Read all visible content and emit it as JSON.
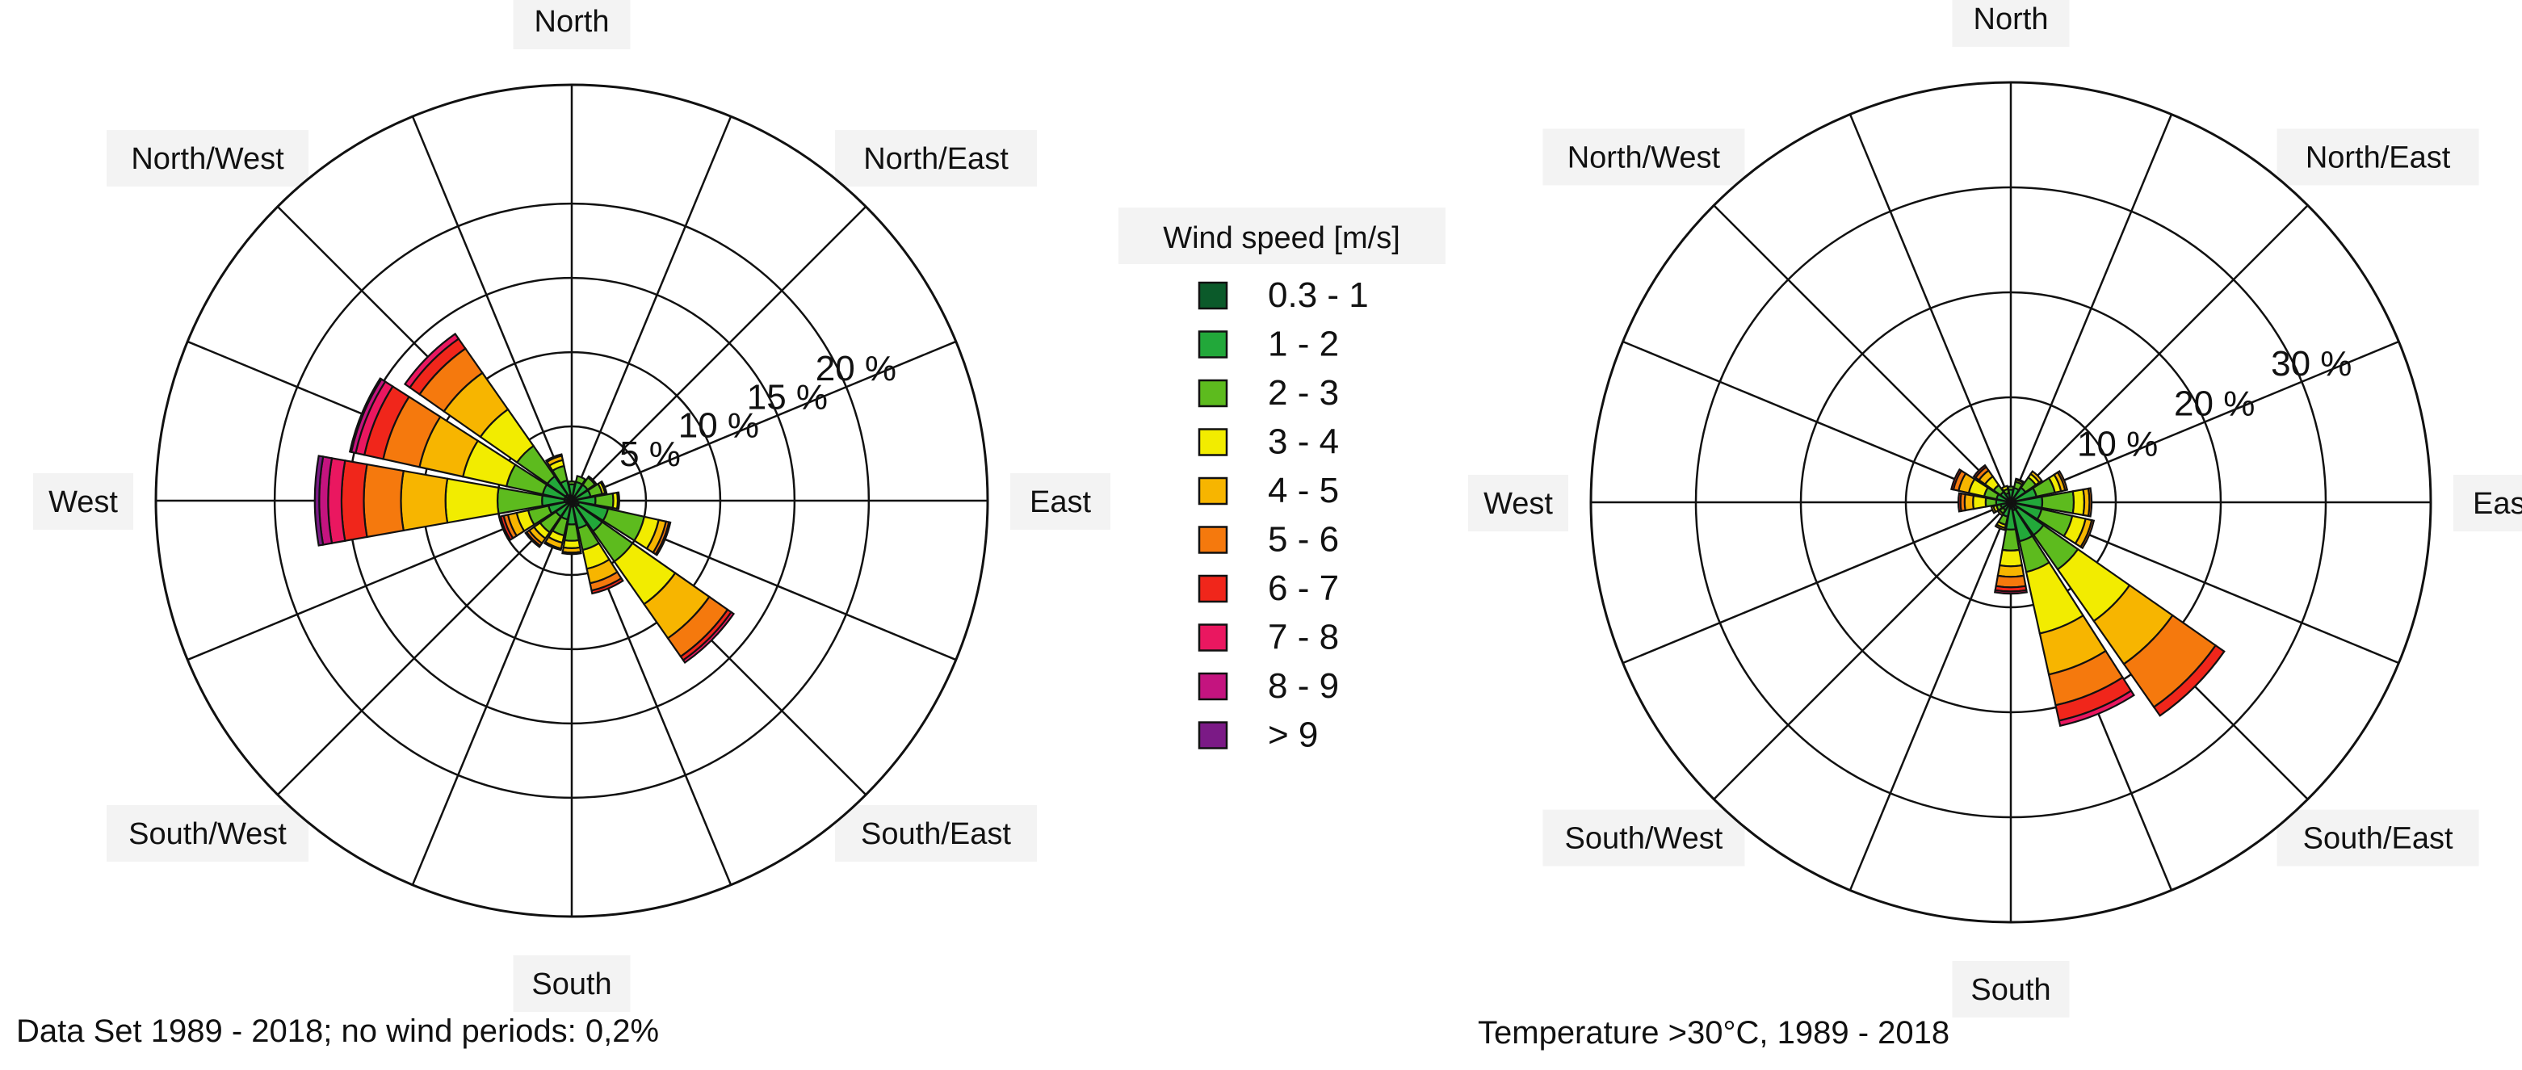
{
  "colors": {
    "0.3 - 1": "#0b5a2a",
    "1 - 2": "#22a83a",
    "2 - 3": "#5dbb1e",
    "3 - 4": "#f2ec00",
    "4 - 5": "#f7b500",
    "5 - 6": "#f5790d",
    "6 - 7": "#f0261b",
    "7 - 8": "#ea1760",
    "8 - 9": "#c4147f",
    "> 9": "#7b1a86"
  },
  "chart_data": [
    {
      "type": "polar-bar",
      "subtype": "wind rose (stacked)",
      "caption": "Data Set 1989 - 2018; no wind periods: 0,2%",
      "direction_labels": [
        "North",
        "North/East",
        "East",
        "South/East",
        "South",
        "South/West",
        "West",
        "North/West"
      ],
      "rings": [
        5,
        10,
        15,
        20
      ],
      "ring_labels": [
        "5 %",
        "10 %",
        "15 %",
        "20 %"
      ],
      "sectors": 16,
      "speed_bins": [
        "0.3 - 1",
        "1 - 2",
        "2 - 3",
        "3 - 4",
        "4 - 5",
        "5 - 6",
        "6 - 7",
        "7 - 8",
        "8 - 9",
        "> 9"
      ],
      "directions": [
        "N",
        "NNE",
        "NE",
        "ENE",
        "E",
        "ESE",
        "SE",
        "SSE",
        "S",
        "SSW",
        "SW",
        "WSW",
        "W",
        "WNW",
        "NW",
        "NNW"
      ],
      "values": [
        [
          0.3,
          0.8,
          0.2,
          0,
          0,
          0,
          0,
          0,
          0,
          0
        ],
        [
          0.3,
          1.0,
          0.4,
          0,
          0,
          0,
          0,
          0,
          0,
          0
        ],
        [
          0.3,
          1.0,
          0.6,
          0.1,
          0,
          0,
          0,
          0,
          0,
          0
        ],
        [
          0.3,
          1.0,
          0.8,
          0.2,
          0.1,
          0,
          0,
          0,
          0,
          0
        ],
        [
          0.4,
          1.2,
          1.2,
          0.3,
          0.1,
          0,
          0,
          0,
          0,
          0
        ],
        [
          0.5,
          2.0,
          2.5,
          1.0,
          0.5,
          0.2,
          0.1,
          0,
          0,
          0
        ],
        [
          0.5,
          2.0,
          2.5,
          3.5,
          2.8,
          1.5,
          0.3,
          0.2,
          0,
          0
        ],
        [
          0.4,
          1.5,
          1.5,
          1.3,
          1.0,
          0.5,
          0.2,
          0,
          0,
          0
        ],
        [
          0.4,
          1.2,
          1.1,
          0.5,
          0.3,
          0.1,
          0,
          0,
          0,
          0
        ],
        [
          0.3,
          1.0,
          1.1,
          0.5,
          0.4,
          0.1,
          0,
          0,
          0,
          0
        ],
        [
          0.3,
          1.0,
          1.3,
          0.5,
          0.4,
          0.2,
          0.1,
          0,
          0,
          0
        ],
        [
          0.4,
          1.2,
          1.4,
          0.8,
          0.6,
          0.3,
          0.2,
          0,
          0,
          0
        ],
        [
          0.5,
          1.5,
          3.0,
          3.5,
          3.0,
          2.5,
          1.5,
          0.9,
          0.6,
          0.3
        ],
        [
          0.5,
          1.5,
          2.5,
          3.0,
          3.0,
          2.5,
          1.3,
          0.6,
          0.3,
          0.1
        ],
        [
          0.5,
          1.5,
          2.5,
          3.0,
          3.0,
          2.0,
          0.8,
          0.4,
          0,
          0
        ],
        [
          0.4,
          1.0,
          1.0,
          0.4,
          0.3,
          0.1,
          0,
          0,
          0,
          0
        ]
      ]
    },
    {
      "type": "polar-bar",
      "subtype": "wind rose (stacked)",
      "caption": "Temperature >30°C, 1989 - 2018",
      "direction_labels": [
        "North",
        "North/East",
        "East",
        "South/East",
        "South",
        "South/West",
        "West",
        "North/West"
      ],
      "rings": [
        10,
        20,
        30
      ],
      "ring_labels": [
        "10 %",
        "20 %",
        "30 %"
      ],
      "sectors": 16,
      "speed_bins": [
        "0.3 - 1",
        "1 - 2",
        "2 - 3",
        "3 - 4",
        "4 - 5",
        "5 - 6",
        "6 - 7",
        "7 - 8",
        "8 - 9",
        "> 9"
      ],
      "directions": [
        "N",
        "NNE",
        "NE",
        "ENE",
        "E",
        "ESE",
        "SE",
        "SSE",
        "S",
        "SSW",
        "SW",
        "WSW",
        "W",
        "WNW",
        "NW",
        "NNW"
      ],
      "values": [
        [
          0.4,
          0.8,
          0.3,
          0,
          0,
          0,
          0,
          0,
          0,
          0
        ],
        [
          0.4,
          1.0,
          0.6,
          0.2,
          0.1,
          0,
          0,
          0,
          0,
          0
        ],
        [
          0.4,
          1.3,
          1.2,
          0.4,
          0.3,
          0,
          0,
          0,
          0,
          0
        ],
        [
          0.5,
          2.0,
          1.8,
          0.6,
          0.4,
          0.2,
          0,
          0,
          0,
          0
        ],
        [
          0.5,
          2.5,
          3.0,
          1.0,
          0.5,
          0.2,
          0,
          0,
          0,
          0
        ],
        [
          0.5,
          2.5,
          3.0,
          1.3,
          0.6,
          0.2,
          0,
          0,
          0,
          0
        ],
        [
          0.8,
          3.0,
          4.0,
          6.0,
          5.0,
          5.0,
          1.0,
          0,
          0,
          0
        ],
        [
          0.8,
          3.0,
          3.0,
          6.0,
          4.0,
          3.0,
          1.5,
          0.5,
          0,
          0
        ],
        [
          0.6,
          2.0,
          2.0,
          1.5,
          1.0,
          1.0,
          0.4,
          0.2,
          0,
          0
        ],
        [
          0.4,
          1.0,
          0.8,
          0.3,
          0.2,
          0,
          0,
          0,
          0,
          0
        ],
        [
          0.3,
          0.6,
          0.4,
          0.2,
          0,
          0,
          0,
          0,
          0,
          0
        ],
        [
          0.3,
          0.7,
          0.4,
          0.3,
          0.2,
          0,
          0,
          0,
          0,
          0
        ],
        [
          0.4,
          1.0,
          1.0,
          1.2,
          0.8,
          0.4,
          0.2,
          0,
          0,
          0
        ],
        [
          0.4,
          1.0,
          1.2,
          1.5,
          1.0,
          0.5,
          0.2,
          0,
          0,
          0
        ],
        [
          0.4,
          0.8,
          0.8,
          1.0,
          0.7,
          0.4,
          0.2,
          0,
          0,
          0
        ],
        [
          0.3,
          0.6,
          0.4,
          0.3,
          0,
          0,
          0,
          0,
          0,
          0
        ]
      ]
    }
  ],
  "legend": {
    "title": "Wind speed [m/s]",
    "items": [
      {
        "bin": "0.3 - 1",
        "label": "0.3  -  1"
      },
      {
        "bin": "1 - 2",
        "label": "1  -  2"
      },
      {
        "bin": "2 - 3",
        "label": "2  -  3"
      },
      {
        "bin": "3 - 4",
        "label": "3  -  4"
      },
      {
        "bin": "4 - 5",
        "label": "4  -  5"
      },
      {
        "bin": "5 - 6",
        "label": "5  -  6"
      },
      {
        "bin": "6 - 7",
        "label": "6  -  7"
      },
      {
        "bin": "7 - 8",
        "label": "7  -  8"
      },
      {
        "bin": "8 - 9",
        "label": "8  -  9"
      },
      {
        "bin": "> 9",
        "label": ">  9"
      }
    ]
  }
}
